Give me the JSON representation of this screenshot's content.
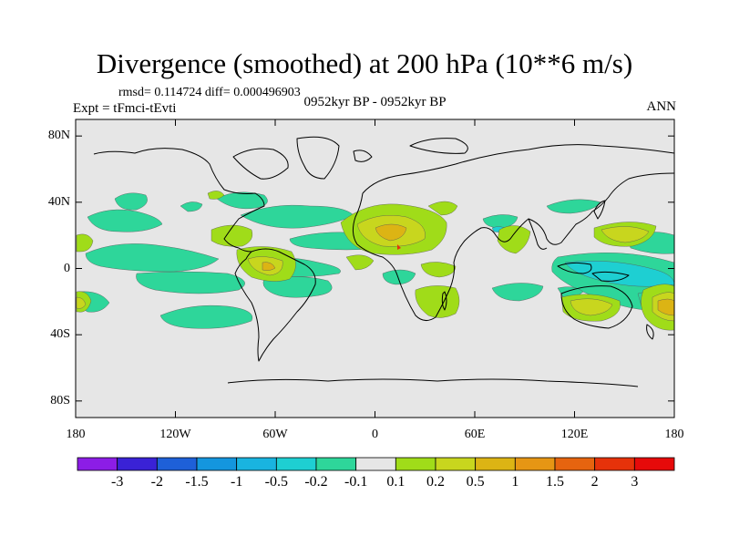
{
  "title": "Divergence (smoothed) at 200 hPa (10**6 m/s)",
  "stats": "rmsd= 0.114724 diff= 0.000496903",
  "experiment": "Expt = tFmci-tEvti",
  "period": "0952kyr BP - 0952kyr BP",
  "season": "ANN",
  "map": {
    "projection": "cylindrical equidistant",
    "lon_range": [
      -180,
      180
    ],
    "lat_range": [
      -90,
      90
    ],
    "background_color": "#e6e6e6",
    "x_ticks": [
      {
        "lon": -180,
        "label": "180"
      },
      {
        "lon": -120,
        "label": "120W"
      },
      {
        "lon": -60,
        "label": "60W"
      },
      {
        "lon": 0,
        "label": "0"
      },
      {
        "lon": 60,
        "label": "60E"
      },
      {
        "lon": 120,
        "label": "120E"
      },
      {
        "lon": 180,
        "label": "180"
      }
    ],
    "y_ticks": [
      {
        "lat": 80,
        "label": "80N"
      },
      {
        "lat": 40,
        "label": "40N"
      },
      {
        "lat": 0,
        "label": "0"
      },
      {
        "lat": -40,
        "label": "40S"
      },
      {
        "lat": -80,
        "label": "80S"
      }
    ]
  },
  "colorbar": {
    "colors": [
      "#8c1de6",
      "#3a22d6",
      "#1e60d8",
      "#1496de",
      "#19b4e0",
      "#1ecfd2",
      "#2ed69a",
      "#e6e6e6",
      "#a0dc19",
      "#c8d61e",
      "#dcb414",
      "#e69614",
      "#e6640f",
      "#e6320a",
      "#e60a0a"
    ],
    "labels": [
      "-3",
      "-2",
      "-1.5",
      "-1",
      "-0.5",
      "-0.2",
      "-0.1",
      "0.1",
      "0.2",
      "0.5",
      "1",
      "1.5",
      "2",
      "3"
    ]
  }
}
